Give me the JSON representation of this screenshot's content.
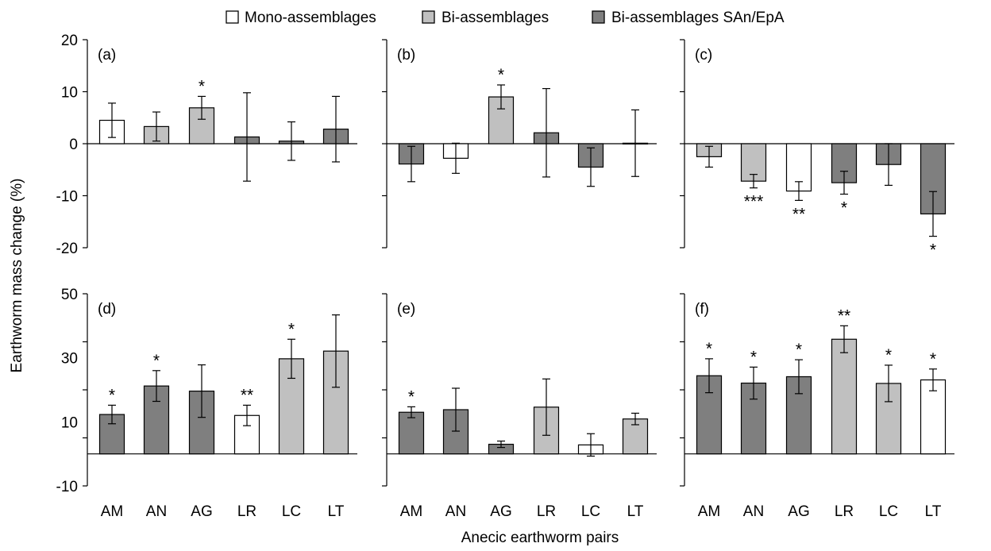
{
  "legend": [
    {
      "label": "Mono-assemblages",
      "fill": "#ffffff"
    },
    {
      "label": "Bi-assemblages",
      "fill": "#c0c0c0"
    },
    {
      "label": "Bi-assemblages SAn/EpA",
      "fill": "#7f7f7f"
    }
  ],
  "ylabel": "Earthworm mass change (%)",
  "xlabel": "Anecic earthworm pairs",
  "chart_data": [
    {
      "type": "bar",
      "panel": "(a)",
      "categories": [
        "AM",
        "AN",
        "AG",
        "LR",
        "LC",
        "LT"
      ],
      "values": [
        4.5,
        3.3,
        6.9,
        1.3,
        0.5,
        2.8
      ],
      "err": [
        3.3,
        2.8,
        2.2,
        8.5,
        3.7,
        6.3
      ],
      "groups": [
        "mono",
        "bi",
        "bi",
        "sanepa",
        "sanepa",
        "sanepa"
      ],
      "sig": [
        "",
        "",
        "*",
        "",
        "",
        ""
      ],
      "ylim": [
        -20,
        20
      ],
      "yticks": [
        "20",
        "10",
        "0",
        "-10",
        "-20"
      ],
      "xticklabels": false
    },
    {
      "type": "bar",
      "panel": "(b)",
      "categories": [
        "AM",
        "AN",
        "AG",
        "LR",
        "LC",
        "LT"
      ],
      "values": [
        -3.9,
        -2.8,
        9.0,
        2.1,
        -4.5,
        0.1
      ],
      "err": [
        3.4,
        2.9,
        2.3,
        8.5,
        3.7,
        6.4
      ],
      "groups": [
        "sanepa",
        "mono",
        "bi",
        "sanepa",
        "sanepa",
        "sanepa"
      ],
      "sig": [
        "",
        "",
        "*",
        "",
        "",
        ""
      ],
      "ylim": [
        -20,
        20
      ],
      "yticks": [],
      "xticklabels": false
    },
    {
      "type": "bar",
      "panel": "(c)",
      "categories": [
        "AM",
        "AN",
        "AG",
        "LR",
        "LC",
        "LT"
      ],
      "values": [
        -2.5,
        -7.2,
        -9.1,
        -7.5,
        -4.0,
        -13.5
      ],
      "err": [
        2.0,
        1.3,
        1.8,
        2.2,
        4.0,
        4.3
      ],
      "groups": [
        "bi",
        "bi",
        "mono",
        "sanepa",
        "sanepa",
        "sanepa"
      ],
      "sig": [
        "",
        "***",
        "**",
        "*",
        "",
        "*"
      ],
      "ylim": [
        -20,
        20
      ],
      "yticks": [],
      "xticklabels": false
    },
    {
      "type": "bar",
      "panel": "(d)",
      "categories": [
        "AM",
        "AN",
        "AG",
        "LR",
        "LC",
        "LT"
      ],
      "values": [
        12.3,
        21.2,
        19.6,
        12.0,
        29.7,
        32.1
      ],
      "err": [
        2.9,
        4.8,
        8.2,
        3.2,
        6.1,
        11.3
      ],
      "groups": [
        "sanepa",
        "sanepa",
        "sanepa",
        "mono",
        "bi",
        "bi"
      ],
      "sig": [
        "*",
        "*",
        "",
        "**",
        "*",
        ""
      ],
      "ylim": [
        -10,
        50
      ],
      "yticks": [
        "50",
        "30",
        "10",
        "-10"
      ],
      "xticklabels": true
    },
    {
      "type": "bar",
      "panel": "(e)",
      "categories": [
        "AM",
        "AN",
        "AG",
        "LR",
        "LC",
        "LT"
      ],
      "values": [
        13.0,
        13.8,
        3.0,
        14.6,
        2.8,
        10.9
      ],
      "err": [
        1.7,
        6.7,
        1.0,
        8.8,
        3.5,
        1.8
      ],
      "groups": [
        "sanepa",
        "sanepa",
        "sanepa",
        "bi",
        "mono",
        "bi"
      ],
      "sig": [
        "*",
        "",
        "",
        "",
        "",
        ""
      ],
      "ylim": [
        -10,
        50
      ],
      "yticks": [],
      "xticklabels": true
    },
    {
      "type": "bar",
      "panel": "(f)",
      "categories": [
        "AM",
        "AN",
        "AG",
        "LR",
        "LC",
        "LT"
      ],
      "values": [
        24.4,
        22.1,
        24.1,
        35.8,
        22.0,
        23.1
      ],
      "err": [
        5.3,
        5.0,
        5.3,
        4.2,
        5.7,
        3.4
      ],
      "groups": [
        "sanepa",
        "sanepa",
        "sanepa",
        "bi",
        "bi",
        "mono"
      ],
      "sig": [
        "*",
        "*",
        "*",
        "**",
        "*",
        "*"
      ],
      "ylim": [
        -10,
        50
      ],
      "yticks": [],
      "xticklabels": true
    }
  ]
}
